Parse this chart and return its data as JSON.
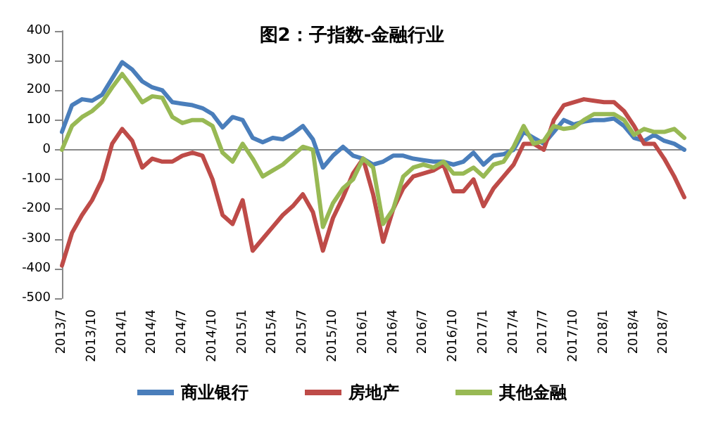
{
  "chart_data": {
    "type": "line",
    "title": "图2：子指数-金融行业",
    "categories": [
      "2013/7",
      null,
      null,
      "2013/10",
      null,
      null,
      "2014/1",
      null,
      null,
      "2014/4",
      null,
      null,
      "2014/7",
      null,
      null,
      "2014/10",
      null,
      null,
      "2015/1",
      null,
      null,
      "2015/4",
      null,
      null,
      "2015/7",
      null,
      null,
      "2015/10",
      null,
      null,
      "2016/1",
      null,
      null,
      "2016/4",
      null,
      null,
      "2016/7",
      null,
      null,
      "2016/10",
      null,
      null,
      "2017/1",
      null,
      null,
      "2017/4",
      null,
      null,
      "2017/7",
      null,
      null,
      "2017/10",
      null,
      null,
      "2018/1",
      null,
      null,
      "2018/4",
      null,
      null,
      "2018/7",
      null,
      null
    ],
    "series": [
      {
        "name": "商业银行",
        "color": "#4a7ebb",
        "values": [
          60,
          150,
          170,
          165,
          185,
          240,
          295,
          270,
          230,
          210,
          200,
          160,
          155,
          150,
          140,
          120,
          75,
          110,
          100,
          40,
          25,
          40,
          35,
          55,
          80,
          35,
          -60,
          -20,
          10,
          -20,
          -30,
          -50,
          -40,
          -20,
          -20,
          -30,
          -35,
          -40,
          -40,
          -50,
          -40,
          -10,
          -50,
          -20,
          -15,
          0,
          60,
          40,
          20,
          60,
          100,
          85,
          95,
          100,
          100,
          105,
          80,
          40,
          30,
          50,
          30,
          20,
          0
        ]
      },
      {
        "name": "房地产",
        "color": "#be4b48",
        "values": [
          -390,
          -280,
          -220,
          -170,
          -100,
          20,
          70,
          30,
          -60,
          -30,
          -40,
          -40,
          -20,
          -10,
          -20,
          -100,
          -220,
          -250,
          -170,
          -340,
          -300,
          -260,
          -220,
          -190,
          -150,
          -210,
          -340,
          -230,
          -160,
          -80,
          -30,
          -150,
          -310,
          -200,
          -130,
          -90,
          -80,
          -70,
          -50,
          -140,
          -140,
          -100,
          -190,
          -130,
          -90,
          -50,
          20,
          20,
          0,
          100,
          150,
          160,
          170,
          165,
          160,
          160,
          130,
          80,
          20,
          20,
          -30,
          -90,
          -160
        ]
      },
      {
        "name": "其他金融",
        "color": "#98b954",
        "values": [
          0,
          80,
          110,
          130,
          160,
          210,
          255,
          210,
          160,
          180,
          175,
          110,
          90,
          100,
          100,
          80,
          -10,
          -40,
          20,
          -30,
          -90,
          -70,
          -50,
          -20,
          10,
          0,
          -260,
          -180,
          -130,
          -100,
          -30,
          -60,
          -250,
          -200,
          -90,
          -60,
          -50,
          -60,
          -40,
          -80,
          -80,
          -60,
          -90,
          -50,
          -40,
          10,
          80,
          20,
          30,
          80,
          70,
          75,
          100,
          120,
          120,
          120,
          100,
          50,
          70,
          60,
          60,
          70,
          40
        ]
      }
    ],
    "ylim": [
      -500,
      400
    ],
    "yticks": [
      -500,
      -400,
      -300,
      -200,
      -100,
      0,
      100,
      200,
      300,
      400
    ],
    "legend": "bottom",
    "marker": "none",
    "line_style": "solid"
  }
}
